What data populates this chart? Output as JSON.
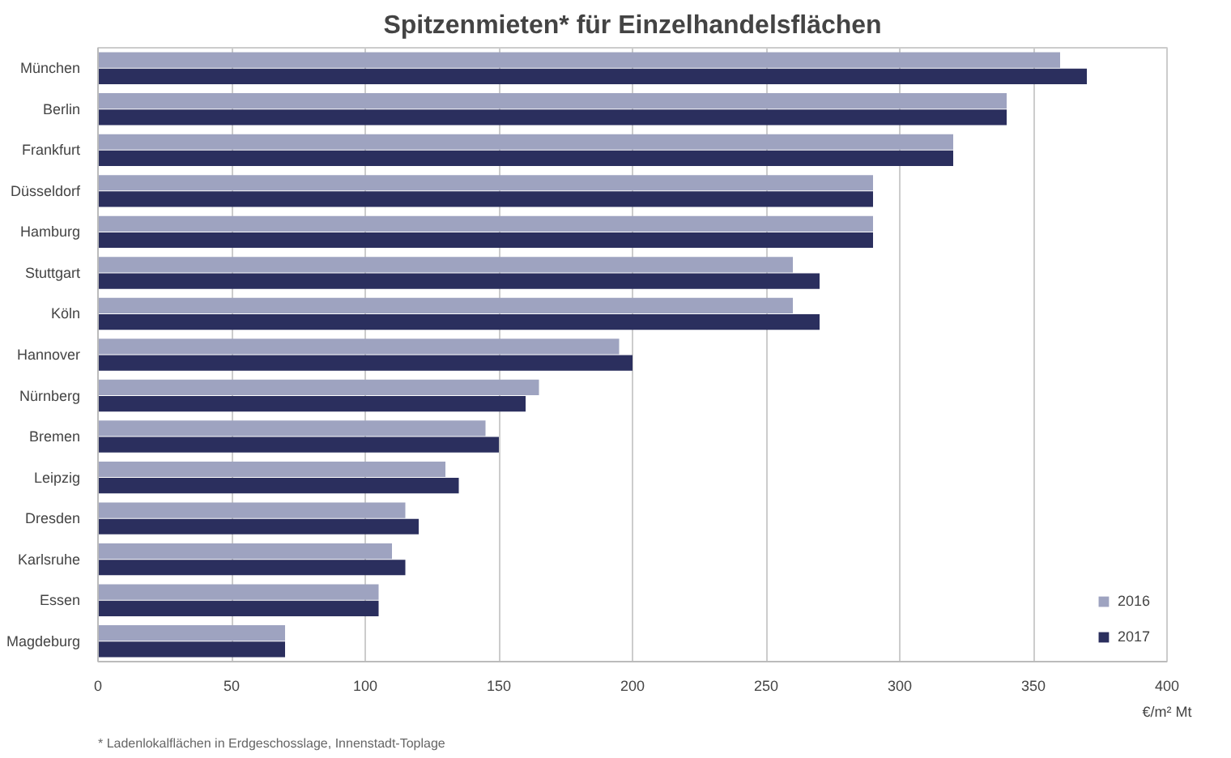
{
  "chart_data": {
    "type": "bar",
    "orientation": "horizontal",
    "title": "Spitzenmieten* für Einzelhandelsflächen",
    "categories": [
      "München",
      "Berlin",
      "Frankfurt",
      "Düsseldorf",
      "Hamburg",
      "Stuttgart",
      "Köln",
      "Hannover",
      "Nürnberg",
      "Bremen",
      "Leipzig",
      "Dresden",
      "Karlsruhe",
      "Essen",
      "Magdeburg"
    ],
    "series": [
      {
        "name": "2016",
        "color": "#9ea3c0",
        "values": [
          360,
          340,
          320,
          290,
          290,
          260,
          260,
          195,
          165,
          145,
          130,
          115,
          110,
          105,
          70
        ]
      },
      {
        "name": "2017",
        "color": "#2b2f5e",
        "values": [
          370,
          340,
          320,
          290,
          290,
          270,
          270,
          200,
          160,
          150,
          135,
          120,
          115,
          105,
          70
        ]
      }
    ],
    "xlim": [
      0,
      400
    ],
    "xticks": [
      0,
      50,
      100,
      150,
      200,
      250,
      300,
      350,
      400
    ],
    "xlabel": "€/m² Mt",
    "grid": "x",
    "legend": "bottom right",
    "annotations": [
      "* Ladenlokalflächen in Erdgeschosslage, Innenstadt-Toplage"
    ]
  }
}
